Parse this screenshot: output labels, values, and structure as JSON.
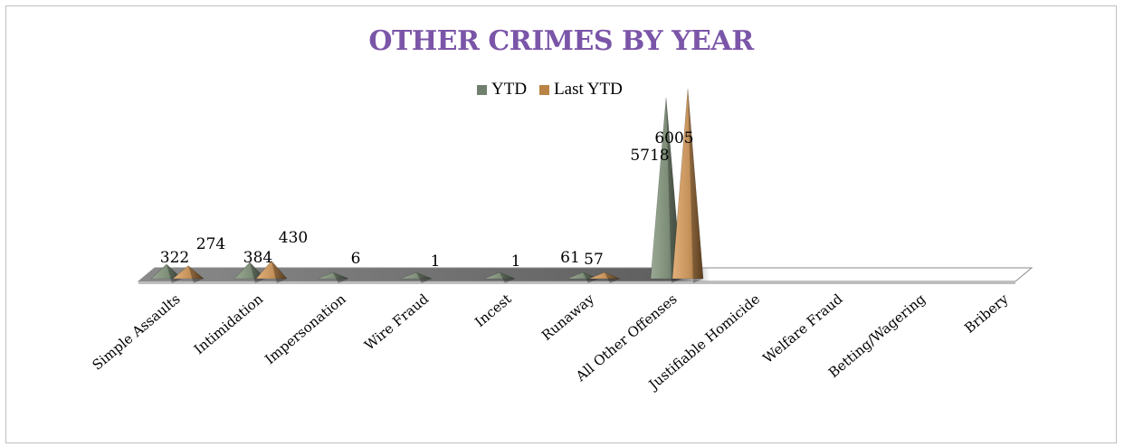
{
  "chart_data": {
    "type": "bar",
    "title": "OTHER CRIMES BY YEAR",
    "categories": [
      "Simple Assaults",
      "Intimidation",
      "Impersonation",
      "Wire Fraud",
      "Incest",
      "Runaway",
      "All Other Offenses",
      "Justifiable Homicide",
      "Welfare Fraud",
      "Betting/Wagering",
      "Bribery"
    ],
    "series": [
      {
        "name": "YTD",
        "values": [
          322,
          384,
          6,
          1,
          1,
          61,
          5718,
          null,
          null,
          null,
          null
        ],
        "color": "#7f8f7a"
      },
      {
        "name": "Last YTD",
        "values": [
          274,
          430,
          null,
          null,
          null,
          57,
          6005,
          null,
          null,
          null,
          null
        ],
        "color": "#c4915a"
      }
    ],
    "value_labels": [
      [
        "322",
        "384",
        "6",
        "1",
        "1",
        "61",
        "5718",
        "",
        "",
        "",
        ""
      ],
      [
        "274",
        "430",
        "",
        "",
        "",
        "57",
        "6005",
        "",
        "",
        "",
        ""
      ]
    ],
    "legend_position": "top",
    "shape": "3d-pyramid",
    "ylim": [
      0,
      6500
    ]
  }
}
